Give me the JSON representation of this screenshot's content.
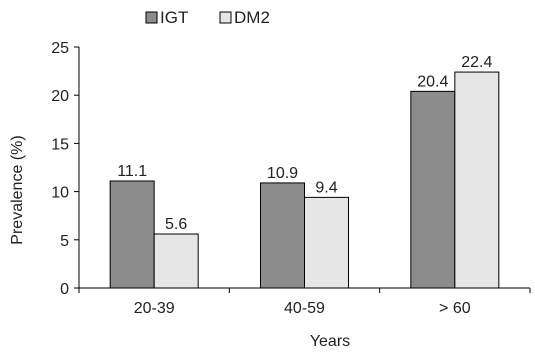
{
  "chart_data": {
    "type": "bar",
    "categories": [
      "20-39",
      "40-59",
      "> 60"
    ],
    "series": [
      {
        "name": "IGT",
        "values": [
          11.1,
          10.9,
          20.4
        ],
        "color": "#8c8c8c"
      },
      {
        "name": "DM2",
        "values": [
          5.6,
          9.4,
          22.4
        ],
        "color": "#e6e6e6"
      }
    ],
    "data_labels": [
      [
        "11.1",
        "10.9",
        "20.4"
      ],
      [
        "5.6",
        "9.4",
        "22.4"
      ]
    ],
    "xlabel": "Years",
    "ylabel": "Prevalence (%)",
    "ylim": [
      0,
      25
    ],
    "yticks": [
      0,
      5,
      10,
      15,
      20,
      25
    ],
    "grid": false,
    "legend_position": "top-left"
  }
}
